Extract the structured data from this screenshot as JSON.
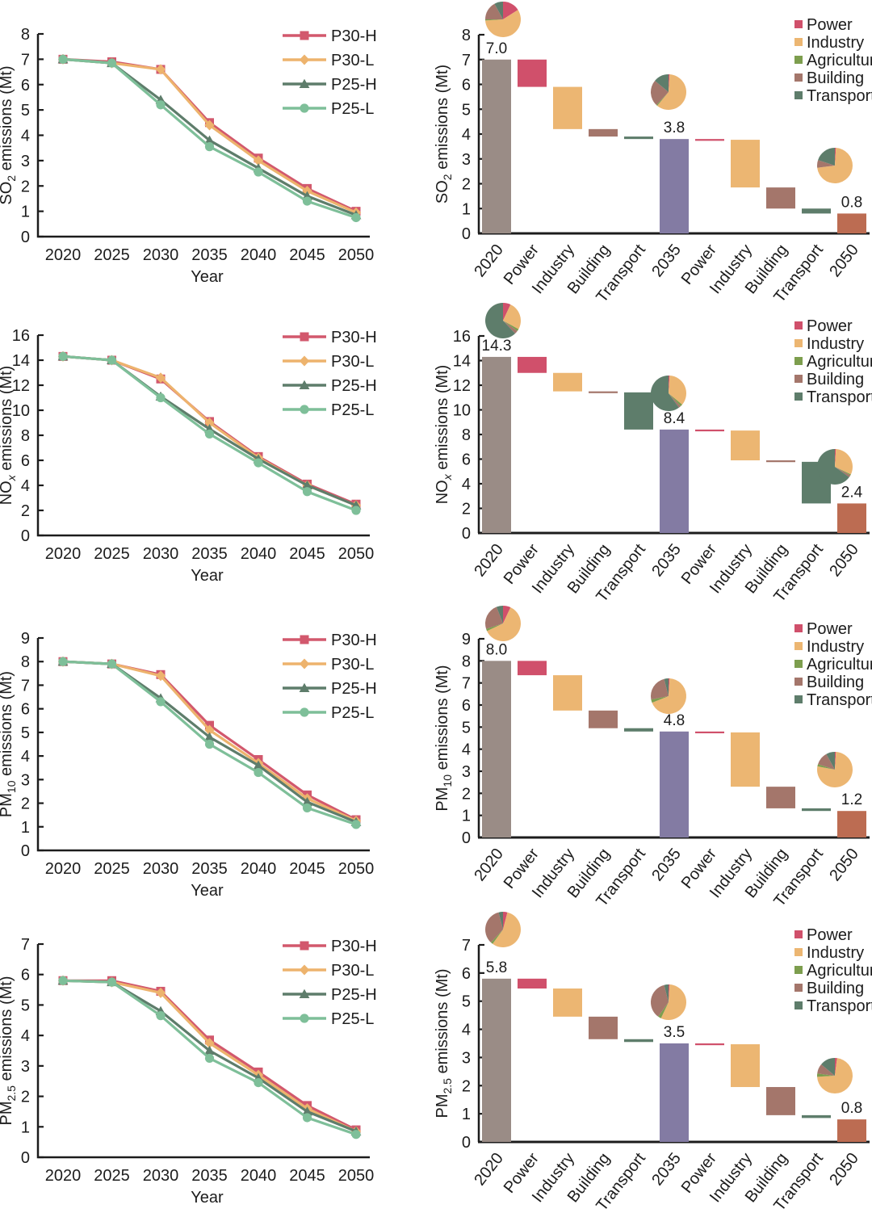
{
  "figure_type": "multi-panel emissions figure",
  "colors": {
    "axis": "#1c1c1c",
    "power": "#d0506b",
    "industry": "#ecb672",
    "agriculture": "#7d9e4e",
    "building": "#a4766b",
    "transport": "#5e7d6b",
    "total_2020": "#9a8c86",
    "total_2035": "#837ba3",
    "total_2050": "#bc6c52",
    "p30h": "#d2586d",
    "p30l": "#edb36d",
    "p25h": "#5e7d6b",
    "p25l": "#7ebf99"
  },
  "sector_legend": [
    "Power",
    "Industry",
    "Agriculture",
    "Building",
    "Transport"
  ],
  "sector_color_keys": [
    "power",
    "industry",
    "agriculture",
    "building",
    "transport"
  ],
  "line_legend": [
    "P30-H",
    "P30-L",
    "P25-H",
    "P25-L"
  ],
  "chart_data": [
    {
      "id": "so2-line",
      "type": "line",
      "ylabel": {
        "main": "SO",
        "sub": "2",
        "italic": false,
        "rest": " emissions (Mt)"
      },
      "xlabel": "Year",
      "x": [
        2020,
        2025,
        2030,
        2035,
        2040,
        2045,
        2050
      ],
      "ylim": [
        0,
        8
      ],
      "ystep": 1,
      "series": [
        {
          "name": "P30-H",
          "marker": "square",
          "color_key": "p30h",
          "values": [
            7.0,
            6.9,
            6.6,
            4.5,
            3.1,
            1.9,
            1.0
          ]
        },
        {
          "name": "P30-L",
          "marker": "diamond",
          "color_key": "p30l",
          "values": [
            7.0,
            6.85,
            6.6,
            4.4,
            3.0,
            1.8,
            0.95
          ]
        },
        {
          "name": "P25-H",
          "marker": "triangle",
          "color_key": "p25h",
          "values": [
            7.0,
            6.85,
            5.4,
            3.8,
            2.7,
            1.6,
            0.85
          ]
        },
        {
          "name": "P25-L",
          "marker": "circle",
          "color_key": "p25l",
          "values": [
            7.0,
            6.85,
            5.2,
            3.55,
            2.55,
            1.4,
            0.75
          ]
        }
      ]
    },
    {
      "id": "so2-waterfall",
      "type": "waterfall",
      "ylabel": {
        "main": "SO",
        "sub": "2",
        "italic": false,
        "rest": " emissions (Mt)"
      },
      "ylim": [
        0,
        8
      ],
      "ystep": 1,
      "bars": [
        {
          "label": "2020",
          "kind": "total",
          "value": 7.0,
          "text": "7.0",
          "color_key": "total_2020"
        },
        {
          "label": "Power",
          "kind": "delta",
          "from": 7.0,
          "to": 5.9
        },
        {
          "label": "Industry",
          "kind": "delta",
          "from": 5.9,
          "to": 4.2
        },
        {
          "label": "Building",
          "kind": "delta",
          "from": 4.2,
          "to": 3.9
        },
        {
          "label": "Transport",
          "kind": "delta",
          "from": 3.9,
          "to": 3.8
        },
        {
          "label": "2035",
          "kind": "total",
          "value": 3.8,
          "text": "3.8",
          "color_key": "total_2035"
        },
        {
          "label": "Power",
          "kind": "delta",
          "from": 3.8,
          "to": 3.77
        },
        {
          "label": "Industry",
          "kind": "delta",
          "from": 3.77,
          "to": 1.85
        },
        {
          "label": "Building",
          "kind": "delta",
          "from": 1.85,
          "to": 1.0
        },
        {
          "label": "Transport",
          "kind": "delta",
          "from": 1.0,
          "to": 0.8
        },
        {
          "label": "2050",
          "kind": "total",
          "value": 0.8,
          "text": "0.8",
          "color_key": "total_2050"
        }
      ],
      "pies": [
        {
          "label": "2020",
          "shares": [
            16,
            58,
            1,
            17,
            8
          ]
        },
        {
          "label": "2035",
          "shares": [
            1,
            60,
            1,
            24,
            14
          ]
        },
        {
          "label": "2050",
          "shares": [
            1,
            72,
            0,
            7,
            20
          ]
        }
      ]
    },
    {
      "id": "nox-line",
      "type": "line",
      "ylabel": {
        "main": "NO",
        "sub": "x",
        "italic": true,
        "rest": " emissions (Mt)"
      },
      "xlabel": "Year",
      "x": [
        2020,
        2025,
        2030,
        2035,
        2040,
        2045,
        2050
      ],
      "ylim": [
        0,
        16
      ],
      "ystep": 2,
      "series": [
        {
          "name": "P30-H",
          "marker": "square",
          "color_key": "p30h",
          "values": [
            14.3,
            14.0,
            12.5,
            9.1,
            6.3,
            4.1,
            2.5
          ]
        },
        {
          "name": "P30-L",
          "marker": "diamond",
          "color_key": "p30l",
          "values": [
            14.3,
            14.0,
            12.6,
            9.0,
            6.2,
            4.0,
            2.4
          ]
        },
        {
          "name": "P25-H",
          "marker": "triangle",
          "color_key": "p25h",
          "values": [
            14.3,
            14.0,
            11.1,
            8.5,
            6.1,
            4.0,
            2.4
          ]
        },
        {
          "name": "P25-L",
          "marker": "circle",
          "color_key": "p25l",
          "values": [
            14.3,
            14.0,
            11.0,
            8.1,
            5.8,
            3.5,
            2.0
          ]
        }
      ]
    },
    {
      "id": "nox-waterfall",
      "type": "waterfall",
      "ylabel": {
        "main": "NO",
        "sub": "x",
        "italic": true,
        "rest": " emissions (Mt)"
      },
      "ylim": [
        0,
        16
      ],
      "ystep": 2,
      "bars": [
        {
          "label": "2020",
          "kind": "total",
          "value": 14.3,
          "text": "14.3",
          "color_key": "total_2020"
        },
        {
          "label": "Power",
          "kind": "delta",
          "from": 14.3,
          "to": 13.0
        },
        {
          "label": "Industry",
          "kind": "delta",
          "from": 13.0,
          "to": 11.5
        },
        {
          "label": "Building",
          "kind": "delta",
          "from": 11.5,
          "to": 11.42
        },
        {
          "label": "Transport",
          "kind": "delta",
          "from": 11.42,
          "to": 8.4
        },
        {
          "label": "2035",
          "kind": "total",
          "value": 8.4,
          "text": "8.4",
          "color_key": "total_2035"
        },
        {
          "label": "Power",
          "kind": "delta",
          "from": 8.4,
          "to": 8.32
        },
        {
          "label": "Industry",
          "kind": "delta",
          "from": 8.32,
          "to": 5.9
        },
        {
          "label": "Building",
          "kind": "delta",
          "from": 5.9,
          "to": 5.78
        },
        {
          "label": "Transport",
          "kind": "delta",
          "from": 5.78,
          "to": 2.4
        },
        {
          "label": "2050",
          "kind": "total",
          "value": 2.4,
          "text": "2.4",
          "color_key": "total_2050"
        }
      ],
      "pies": [
        {
          "label": "2020",
          "shares": [
            7,
            26,
            2,
            3,
            62
          ]
        },
        {
          "label": "2035",
          "shares": [
            1,
            35,
            2,
            2,
            60
          ]
        },
        {
          "label": "2050",
          "shares": [
            1,
            31,
            1,
            2,
            65
          ]
        }
      ]
    },
    {
      "id": "pm10-line",
      "type": "line",
      "ylabel": {
        "main": "PM",
        "sub": "10",
        "italic": false,
        "rest": " emissions (Mt)"
      },
      "xlabel": "Year",
      "x": [
        2020,
        2025,
        2030,
        2035,
        2040,
        2045,
        2050
      ],
      "ylim": [
        0,
        9
      ],
      "ystep": 1,
      "series": [
        {
          "name": "P30-H",
          "marker": "square",
          "color_key": "p30h",
          "values": [
            8.0,
            7.9,
            7.45,
            5.3,
            3.85,
            2.35,
            1.3
          ]
        },
        {
          "name": "P30-L",
          "marker": "diamond",
          "color_key": "p30l",
          "values": [
            8.0,
            7.9,
            7.4,
            5.1,
            3.7,
            2.2,
            1.25
          ]
        },
        {
          "name": "P25-H",
          "marker": "triangle",
          "color_key": "p25h",
          "values": [
            8.0,
            7.9,
            6.45,
            4.8,
            3.6,
            2.05,
            1.2
          ]
        },
        {
          "name": "P25-L",
          "marker": "circle",
          "color_key": "p25l",
          "values": [
            8.0,
            7.9,
            6.3,
            4.5,
            3.3,
            1.8,
            1.1
          ]
        }
      ]
    },
    {
      "id": "pm10-waterfall",
      "type": "waterfall",
      "ylabel": {
        "main": "PM",
        "sub": "10",
        "italic": false,
        "rest": " emissions (Mt)"
      },
      "ylim": [
        0,
        9
      ],
      "ystep": 1,
      "bars": [
        {
          "label": "2020",
          "kind": "total",
          "value": 8.0,
          "text": "8.0",
          "color_key": "total_2020"
        },
        {
          "label": "Power",
          "kind": "delta",
          "from": 8.0,
          "to": 7.35
        },
        {
          "label": "Industry",
          "kind": "delta",
          "from": 7.35,
          "to": 5.75
        },
        {
          "label": "Building",
          "kind": "delta",
          "from": 5.75,
          "to": 4.95
        },
        {
          "label": "Transport",
          "kind": "delta",
          "from": 4.95,
          "to": 4.8
        },
        {
          "label": "2035",
          "kind": "total",
          "value": 4.8,
          "text": "4.8",
          "color_key": "total_2035"
        },
        {
          "label": "Power",
          "kind": "delta",
          "from": 4.8,
          "to": 4.76
        },
        {
          "label": "Industry",
          "kind": "delta",
          "from": 4.76,
          "to": 2.3
        },
        {
          "label": "Building",
          "kind": "delta",
          "from": 2.3,
          "to": 1.32
        },
        {
          "label": "Transport",
          "kind": "delta",
          "from": 1.32,
          "to": 1.2
        },
        {
          "label": "2050",
          "kind": "total",
          "value": 1.2,
          "text": "1.2",
          "color_key": "total_2050"
        }
      ],
      "pies": [
        {
          "label": "2020",
          "shares": [
            7,
            61,
            2,
            24,
            6
          ]
        },
        {
          "label": "2035",
          "shares": [
            1,
            68,
            3,
            24,
            4
          ]
        },
        {
          "label": "2050",
          "shares": [
            1,
            77,
            2,
            12,
            8
          ]
        }
      ]
    },
    {
      "id": "pm25-line",
      "type": "line",
      "ylabel": {
        "main": "PM",
        "sub": "2.5",
        "italic": false,
        "rest": " emissions (Mt)"
      },
      "xlabel": "Year",
      "x": [
        2020,
        2025,
        2030,
        2035,
        2040,
        2045,
        2050
      ],
      "ylim": [
        0,
        7
      ],
      "ystep": 1,
      "series": [
        {
          "name": "P30-H",
          "marker": "square",
          "color_key": "p30h",
          "values": [
            5.8,
            5.8,
            5.45,
            3.85,
            2.8,
            1.7,
            0.9
          ]
        },
        {
          "name": "P30-L",
          "marker": "diamond",
          "color_key": "p30l",
          "values": [
            5.8,
            5.75,
            5.4,
            3.75,
            2.7,
            1.6,
            0.85
          ]
        },
        {
          "name": "P25-H",
          "marker": "triangle",
          "color_key": "p25h",
          "values": [
            5.8,
            5.75,
            4.8,
            3.5,
            2.6,
            1.5,
            0.85
          ]
        },
        {
          "name": "P25-L",
          "marker": "circle",
          "color_key": "p25l",
          "values": [
            5.8,
            5.75,
            4.65,
            3.25,
            2.45,
            1.3,
            0.75
          ]
        }
      ]
    },
    {
      "id": "pm25-waterfall",
      "type": "waterfall",
      "ylabel": {
        "main": "PM",
        "sub": "2.5",
        "italic": false,
        "rest": " emissions (Mt)"
      },
      "ylim": [
        0,
        7
      ],
      "ystep": 1,
      "bars": [
        {
          "label": "2020",
          "kind": "total",
          "value": 5.8,
          "text": "5.8",
          "color_key": "total_2020"
        },
        {
          "label": "Power",
          "kind": "delta",
          "from": 5.8,
          "to": 5.45
        },
        {
          "label": "Industry",
          "kind": "delta",
          "from": 5.45,
          "to": 4.45
        },
        {
          "label": "Building",
          "kind": "delta",
          "from": 4.45,
          "to": 3.65
        },
        {
          "label": "Transport",
          "kind": "delta",
          "from": 3.65,
          "to": 3.55
        },
        {
          "label": "2035",
          "kind": "total",
          "value": 3.5,
          "text": "3.5",
          "color_key": "total_2035"
        },
        {
          "label": "Power",
          "kind": "delta",
          "from": 3.5,
          "to": 3.47
        },
        {
          "label": "Industry",
          "kind": "delta",
          "from": 3.47,
          "to": 1.95
        },
        {
          "label": "Building",
          "kind": "delta",
          "from": 1.95,
          "to": 0.95
        },
        {
          "label": "Transport",
          "kind": "delta",
          "from": 0.95,
          "to": 0.85
        },
        {
          "label": "2050",
          "kind": "total",
          "value": 0.8,
          "text": "0.8",
          "color_key": "total_2050"
        }
      ],
      "pies": [
        {
          "label": "2020",
          "shares": [
            4,
            56,
            2,
            34,
            4
          ]
        },
        {
          "label": "2035",
          "shares": [
            1,
            56,
            3,
            36,
            4
          ]
        },
        {
          "label": "2050",
          "shares": [
            2,
            72,
            3,
            9,
            14
          ]
        }
      ]
    }
  ]
}
